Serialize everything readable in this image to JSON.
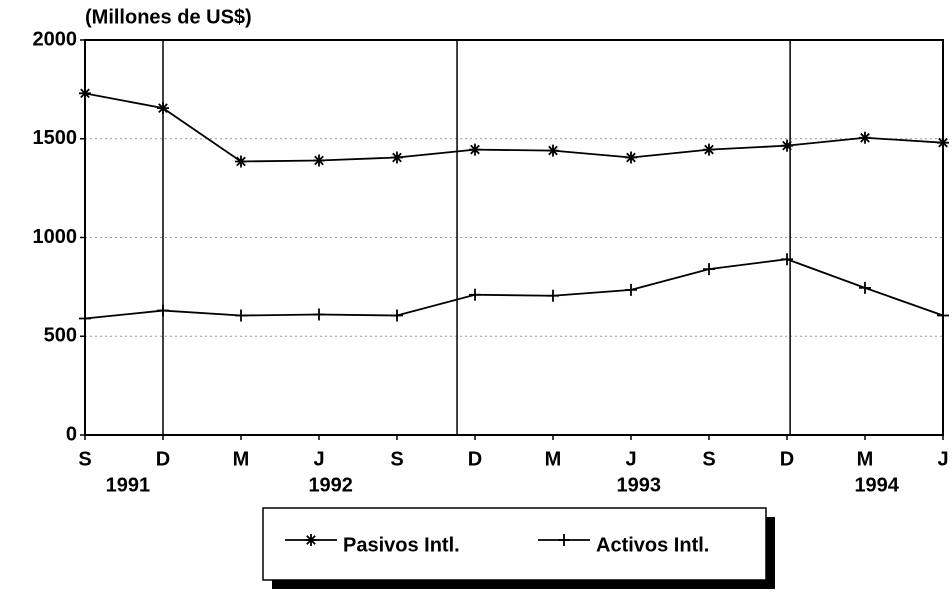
{
  "chart_data": {
    "type": "line",
    "y_axis_label": "(Millones de US$)",
    "categories": [
      "S",
      "D",
      "M",
      "J",
      "S",
      "D",
      "M",
      "J",
      "S",
      "D",
      "M",
      "J"
    ],
    "year_labels": [
      "1991",
      "1992",
      "1993",
      "1994"
    ],
    "series": [
      {
        "name": "Pasivos Intl.",
        "color": "#000000",
        "marker": "asterisk",
        "values": [
          1730,
          1655,
          1385,
          1390,
          1405,
          1445,
          1440,
          1405,
          1445,
          1465,
          1505,
          1480
        ]
      },
      {
        "name": "Activos Intl.",
        "color": "#000000",
        "marker": "plus",
        "values": [
          590,
          630,
          605,
          610,
          605,
          710,
          705,
          735,
          840,
          890,
          745,
          605
        ]
      }
    ],
    "ylim": [
      0,
      2000
    ],
    "yticks": [
      0,
      500,
      1000,
      1500,
      2000
    ],
    "grid": true,
    "legend": "bottom"
  }
}
